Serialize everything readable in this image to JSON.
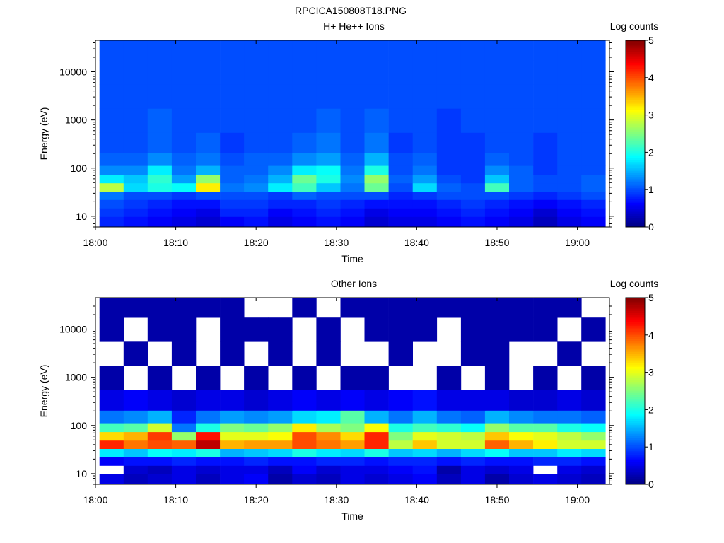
{
  "figure_title": "RPCICA150808T18.PNG",
  "chart_data": [
    {
      "type": "heatmap",
      "title": "H+ He++ Ions",
      "xlabel": "Time",
      "ylabel": "Energy (eV)",
      "x_ticks": [
        "18:00",
        "18:10",
        "18:20",
        "18:30",
        "18:40",
        "18:50",
        "19:00"
      ],
      "y_ticks": [
        "10",
        "100",
        "1000",
        "10000"
      ],
      "y_scale": "log",
      "ylim": [
        6,
        45000
      ],
      "colorbar": {
        "label": "Log counts",
        "ticks": [
          "0",
          "1",
          "2",
          "3",
          "4",
          "5"
        ],
        "range": [
          0,
          5
        ],
        "colormap": "jet"
      },
      "time_columns": [
        "18:02",
        "18:05",
        "18:08",
        "18:11",
        "18:14",
        "18:17",
        "18:20",
        "18:23",
        "18:26",
        "18:29",
        "18:32",
        "18:35",
        "18:38",
        "18:41",
        "18:44",
        "18:47",
        "18:50",
        "18:53",
        "18:56",
        "18:59",
        "19:02"
      ],
      "energy_bands_eV": [
        8,
        12,
        18,
        27,
        40,
        60,
        90,
        140,
        300,
        1000,
        3000,
        10000,
        30000
      ],
      "log_counts": [
        [
          0.8,
          0.7,
          0.6,
          0.5,
          0.4,
          0.6,
          0.7,
          0.5,
          0.6,
          0.7,
          0.6,
          0.4,
          0.5,
          0.5,
          0.6,
          0.7,
          0.6,
          0.5,
          0.3,
          0.5,
          0.6
        ],
        [
          0.9,
          0.8,
          0.7,
          0.6,
          0.5,
          0.8,
          0.8,
          0.6,
          0.7,
          0.8,
          0.7,
          0.5,
          0.6,
          0.6,
          0.7,
          0.8,
          0.7,
          0.6,
          0.4,
          0.6,
          0.7
        ],
        [
          1.0,
          0.9,
          0.8,
          0.7,
          0.7,
          0.9,
          0.9,
          0.8,
          0.8,
          0.9,
          0.8,
          0.7,
          0.7,
          0.7,
          0.8,
          0.9,
          0.8,
          0.7,
          0.6,
          0.7,
          0.8
        ],
        [
          1.2,
          1.0,
          1.0,
          0.9,
          1.0,
          1.0,
          1.0,
          0.9,
          1.1,
          1.0,
          1.0,
          1.0,
          0.8,
          0.9,
          1.0,
          1.0,
          1.0,
          0.9,
          0.8,
          0.9,
          1.0
        ],
        [
          2.8,
          1.7,
          2.0,
          1.9,
          3.2,
          1.2,
          1.3,
          1.8,
          2.2,
          1.6,
          1.2,
          2.4,
          1.0,
          1.7,
          1.1,
          1.0,
          2.2,
          1.1,
          1.0,
          1.0,
          1.1
        ],
        [
          1.8,
          1.6,
          2.1,
          1.4,
          2.6,
          1.1,
          1.2,
          1.5,
          2.4,
          2.0,
          1.3,
          2.6,
          1.1,
          1.4,
          1.0,
          0.9,
          1.6,
          1.1,
          1.0,
          1.0,
          1.1
        ],
        [
          1.3,
          1.3,
          1.8,
          1.2,
          1.5,
          1.1,
          1.1,
          1.3,
          1.8,
          1.9,
          1.2,
          2.0,
          1.0,
          1.2,
          0.9,
          0.9,
          1.3,
          1.1,
          0.9,
          1.0,
          1.0
        ],
        [
          1.1,
          1.1,
          1.3,
          1.1,
          1.2,
          1.0,
          1.1,
          1.1,
          1.3,
          1.4,
          1.1,
          1.5,
          1.0,
          1.1,
          0.9,
          0.9,
          1.1,
          1.0,
          0.9,
          1.0,
          1.0
        ],
        [
          1.0,
          1.0,
          1.1,
          1.0,
          1.1,
          0.9,
          1.0,
          1.0,
          1.1,
          1.2,
          1.0,
          1.2,
          0.9,
          1.0,
          0.9,
          0.9,
          1.0,
          1.0,
          0.9,
          1.0,
          1.0
        ],
        [
          1.0,
          1.0,
          1.1,
          1.0,
          1.0,
          1.0,
          1.0,
          1.0,
          1.0,
          1.1,
          1.0,
          1.1,
          1.0,
          1.0,
          0.9,
          1.0,
          1.0,
          1.0,
          1.0,
          1.0,
          1.0
        ],
        [
          1.0,
          1.0,
          1.0,
          1.0,
          1.0,
          1.0,
          1.0,
          1.0,
          1.0,
          1.0,
          1.0,
          1.0,
          1.0,
          1.0,
          1.0,
          1.0,
          1.0,
          1.0,
          1.0,
          1.0,
          1.0
        ],
        [
          1.0,
          1.0,
          1.0,
          1.0,
          1.0,
          1.0,
          1.0,
          1.0,
          1.0,
          1.0,
          1.0,
          1.0,
          1.0,
          1.0,
          1.0,
          1.0,
          1.0,
          1.0,
          1.0,
          1.0,
          1.0
        ],
        [
          1.0,
          1.0,
          1.0,
          1.0,
          1.0,
          1.0,
          1.0,
          1.0,
          1.0,
          1.0,
          1.0,
          1.0,
          1.0,
          1.0,
          1.0,
          1.0,
          1.0,
          1.0,
          1.0,
          1.0,
          1.0
        ]
      ]
    },
    {
      "type": "heatmap",
      "title": "Other Ions",
      "xlabel": "Time",
      "ylabel": "Energy (eV)",
      "x_ticks": [
        "18:00",
        "18:10",
        "18:20",
        "18:30",
        "18:40",
        "18:50",
        "19:00"
      ],
      "y_ticks": [
        "10",
        "100",
        "1000",
        "10000"
      ],
      "y_scale": "log",
      "ylim": [
        6,
        45000
      ],
      "colorbar": {
        "label": "Log counts",
        "ticks": [
          "0",
          "1",
          "2",
          "3",
          "4",
          "5"
        ],
        "range": [
          0,
          5
        ],
        "colormap": "jet"
      },
      "time_columns": [
        "18:02",
        "18:05",
        "18:08",
        "18:11",
        "18:14",
        "18:17",
        "18:20",
        "18:23",
        "18:26",
        "18:29",
        "18:32",
        "18:35",
        "18:38",
        "18:41",
        "18:44",
        "18:47",
        "18:50",
        "18:53",
        "18:56",
        "18:59",
        "19:02"
      ],
      "energy_bands_eV": [
        8,
        12,
        18,
        27,
        40,
        60,
        90,
        140,
        300,
        1000,
        3000,
        10000,
        30000
      ],
      "log_counts": [
        [
          0.5,
          0.3,
          0.4,
          0.5,
          0.3,
          0.5,
          0.6,
          0.2,
          0.4,
          0.3,
          0.5,
          0.4,
          0.5,
          0.6,
          0.3,
          0.5,
          0.2,
          0.4,
          0.5,
          0.4,
          0.3
        ],
        [
          null,
          0.4,
          0.3,
          0.5,
          0.4,
          0.5,
          0.5,
          0.3,
          0.6,
          0.4,
          0.5,
          0.5,
          0.6,
          0.7,
          0.2,
          0.5,
          0.4,
          0.5,
          null,
          0.5,
          0.4
        ],
        [
          0.6,
          0.7,
          0.7,
          0.8,
          0.7,
          0.7,
          0.8,
          0.7,
          0.7,
          0.8,
          0.8,
          0.7,
          0.8,
          0.8,
          0.7,
          0.8,
          0.7,
          0.7,
          0.8,
          0.8,
          0.7
        ],
        [
          1.8,
          1.6,
          1.9,
          1.8,
          2.0,
          1.5,
          1.6,
          1.7,
          2.0,
          1.8,
          1.7,
          2.0,
          1.6,
          1.7,
          1.5,
          1.7,
          1.9,
          1.6,
          1.6,
          1.8,
          1.7
        ],
        [
          4.2,
          3.8,
          4.0,
          3.9,
          4.7,
          3.5,
          3.6,
          3.6,
          4.0,
          3.8,
          3.6,
          4.2,
          2.8,
          3.4,
          2.9,
          2.9,
          3.9,
          3.5,
          3.2,
          2.9,
          2.9
        ],
        [
          3.3,
          3.5,
          4.1,
          2.6,
          4.3,
          3.0,
          3.0,
          3.1,
          4.0,
          3.7,
          3.3,
          4.2,
          2.5,
          3.0,
          2.9,
          2.8,
          3.4,
          3.1,
          3.0,
          2.8,
          2.6
        ],
        [
          2.2,
          2.3,
          2.9,
          1.2,
          2.0,
          2.5,
          2.4,
          2.6,
          3.2,
          2.7,
          2.5,
          3.1,
          2.0,
          2.2,
          2.1,
          1.9,
          2.6,
          2.3,
          2.3,
          2.0,
          1.9
        ],
        [
          1.2,
          1.3,
          1.5,
          0.8,
          1.2,
          1.4,
          1.3,
          1.4,
          1.7,
          1.8,
          2.3,
          1.5,
          1.2,
          1.5,
          1.2,
          1.1,
          1.5,
          1.3,
          1.2,
          1.2,
          1.1
        ],
        [
          0.5,
          0.6,
          0.5,
          0.4,
          0.5,
          0.5,
          0.4,
          0.5,
          0.6,
          0.5,
          0.6,
          0.5,
          0.6,
          0.7,
          0.5,
          0.5,
          0.5,
          0.4,
          0.4,
          0.5,
          0.4
        ],
        [
          0.2,
          null,
          0.2,
          null,
          0.2,
          null,
          0.2,
          null,
          0.2,
          null,
          0.2,
          0.2,
          null,
          null,
          0.2,
          null,
          0.2,
          null,
          0.2,
          null,
          0.2
        ],
        [
          null,
          0.2,
          null,
          0.2,
          null,
          0.2,
          null,
          0.2,
          null,
          0.2,
          null,
          null,
          0.2,
          null,
          null,
          0.2,
          0.2,
          null,
          null,
          0.2,
          null
        ],
        [
          0.2,
          null,
          0.2,
          0.2,
          null,
          0.2,
          0.2,
          0.2,
          null,
          0.2,
          null,
          0.2,
          0.2,
          0.2,
          null,
          0.2,
          0.2,
          0.2,
          0.2,
          null,
          0.2
        ],
        [
          0.2,
          0.2,
          0.2,
          0.2,
          0.2,
          0.2,
          null,
          null,
          0.2,
          null,
          0.2,
          0.2,
          0.2,
          0.2,
          0.2,
          0.2,
          0.2,
          0.2,
          0.2,
          0.2,
          null
        ]
      ]
    }
  ]
}
